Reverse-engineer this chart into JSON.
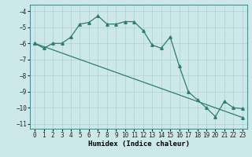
{
  "xlabel": "Humidex (Indice chaleur)",
  "ylabel": "",
  "background_color": "#cde8e8",
  "grid_color": "#b0d0d0",
  "line_color": "#2e7d6e",
  "xlim": [
    -0.5,
    23.5
  ],
  "ylim": [
    -11.3,
    -3.6
  ],
  "xticks": [
    0,
    1,
    2,
    3,
    4,
    5,
    6,
    7,
    8,
    9,
    10,
    11,
    12,
    13,
    14,
    15,
    16,
    17,
    18,
    19,
    20,
    21,
    22,
    23
  ],
  "yticks": [
    -11,
    -10,
    -9,
    -8,
    -7,
    -6,
    -5,
    -4
  ],
  "series1_x": [
    0,
    1,
    2,
    3,
    4,
    5,
    6,
    7,
    8,
    9,
    10,
    11,
    12,
    13,
    14,
    15,
    16,
    17,
    18,
    19,
    20,
    21,
    22,
    23
  ],
  "series1_y": [
    -6.0,
    -6.3,
    -6.0,
    -6.0,
    -5.6,
    -4.8,
    -4.7,
    -4.3,
    -4.8,
    -4.8,
    -4.65,
    -4.65,
    -5.2,
    -6.1,
    -6.3,
    -5.6,
    -7.4,
    -9.0,
    -9.5,
    -10.0,
    -10.55,
    -9.6,
    -10.0,
    -10.05
  ],
  "series2_x": [
    0,
    23
  ],
  "series2_y": [
    -6.0,
    -10.6
  ]
}
